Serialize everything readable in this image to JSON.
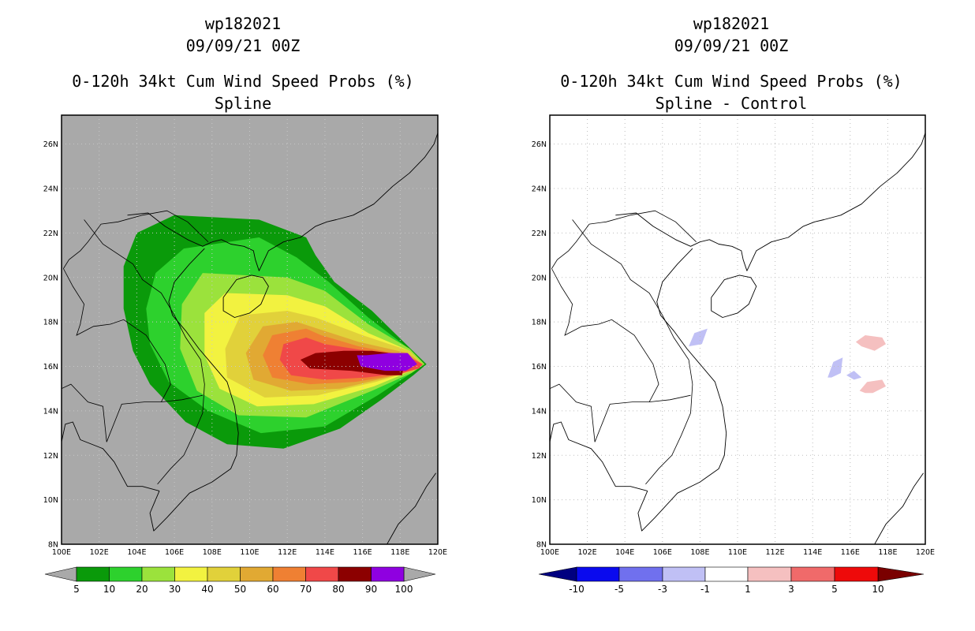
{
  "panels": [
    {
      "id": "left",
      "title_lines": [
        "wp182021",
        "09/09/21 00Z",
        "0-120h 34kt Cum Wind Speed Probs (%)",
        "Spline"
      ],
      "background_color": "#a9a9a9",
      "colorbar": {
        "colors": [
          "#0a9a0a",
          "#2dd12d",
          "#9be23c",
          "#f2f240",
          "#e1d13a",
          "#e1a933",
          "#ef8033",
          "#f04848",
          "#8c0000",
          "#8f00e0"
        ],
        "labels": [
          "5",
          "10",
          "20",
          "30",
          "40",
          "50",
          "60",
          "70",
          "80",
          "90",
          "100"
        ],
        "end_arrow_color": "#a9a9a9"
      }
    },
    {
      "id": "right",
      "title_lines": [
        "wp182021",
        "09/09/21 00Z",
        "0-120h 34kt Cum Wind Speed Probs (%)",
        "Spline - Control"
      ],
      "background_color": "#ffffff",
      "colorbar": {
        "colors": [
          "#0000a0",
          "#0a0aee",
          "#7070ee",
          "#c0c0f5",
          "#ffffff",
          "#f5c0c0",
          "#f06a6a",
          "#ee0a0a",
          "#8c0000"
        ],
        "labels": [
          "-10",
          "-5",
          "-3",
          "-1",
          "1",
          "3",
          "5",
          "10"
        ],
        "left_arrow_color": "#000080",
        "right_arrow_color": "#7a0000"
      }
    }
  ],
  "chart_data": {
    "type": "heatmap",
    "units": "%",
    "map": {
      "lon_range": [
        100,
        120
      ],
      "lat_range": [
        8,
        27.3
      ],
      "x_tick_labels": [
        "100E",
        "102E",
        "104E",
        "106E",
        "108E",
        "110E",
        "112E",
        "114E",
        "116E",
        "118E",
        "120E"
      ],
      "y_tick_labels": [
        "8N",
        "10N",
        "12N",
        "14N",
        "16N",
        "18N",
        "20N",
        "22N",
        "24N",
        "26N"
      ]
    },
    "left_probability_contours": [
      {
        "level": 5,
        "lons": [
          113.5,
          113,
          110.5,
          106,
          104,
          103.3,
          103.3,
          103.8,
          104.7,
          106.6,
          108.8,
          111.8,
          114.8,
          117,
          118.7,
          119.4,
          118.3,
          116.5,
          114.5
        ],
        "lats": [
          21.0,
          21.8,
          22.6,
          22.8,
          22.0,
          20.5,
          18.6,
          16.7,
          15.2,
          13.5,
          12.5,
          12.3,
          13.2,
          14.5,
          15.6,
          16.1,
          17.0,
          18.5,
          19.8
        ]
      },
      {
        "level": 10,
        "lons": [
          112.5,
          110.5,
          106.5,
          105,
          104.5,
          104.7,
          105.7,
          107.8,
          110.6,
          114,
          116.8,
          118.6,
          119.3,
          118.3,
          116.3,
          114.2
        ],
        "lats": [
          20.9,
          21.8,
          21.3,
          20.2,
          18.6,
          17.0,
          15.3,
          14.0,
          13.0,
          13.3,
          14.7,
          15.7,
          16.1,
          16.9,
          18.2,
          19.8
        ]
      },
      {
        "level": 20,
        "lons": [
          112,
          107.5,
          106.4,
          106.3,
          107.2,
          109.4,
          113,
          116.5,
          118.6,
          119.3,
          118.5,
          116.3,
          114
        ],
        "lats": [
          20.0,
          20.2,
          18.8,
          16.8,
          14.9,
          13.8,
          13.7,
          14.9,
          15.7,
          16.1,
          16.8,
          17.9,
          19.4
        ]
      },
      {
        "level": 30,
        "lons": [
          112,
          108.7,
          107.6,
          107.6,
          108.4,
          110.4,
          113.4,
          116.6,
          118.6,
          119.2,
          118.5,
          116.3,
          114
        ],
        "lats": [
          19.2,
          19.3,
          18.4,
          16.5,
          15.0,
          14.2,
          14.3,
          15.1,
          15.8,
          16.1,
          16.7,
          17.5,
          18.7
        ]
      },
      {
        "level": 40,
        "lons": [
          112,
          109.5,
          108.7,
          108.8,
          110.8,
          113.6,
          116.7,
          118.7,
          119.2,
          118.5,
          116,
          113.5
        ],
        "lats": [
          18.5,
          18.3,
          16.8,
          15.5,
          14.6,
          14.7,
          15.3,
          15.8,
          16.1,
          16.7,
          17.4,
          18.2
        ]
      },
      {
        "level": 50,
        "lons": [
          112.5,
          110.7,
          109.8,
          110.2,
          112.2,
          114.8,
          117.3,
          118.8,
          119.2,
          118.4,
          115.8,
          113.6
        ],
        "lats": [
          18.0,
          17.8,
          16.6,
          15.4,
          14.9,
          15.0,
          15.5,
          15.9,
          16.1,
          16.6,
          17.1,
          17.7
        ]
      },
      {
        "level": 60,
        "lons": [
          113,
          111.2,
          110.7,
          111.2,
          113.2,
          115.6,
          117.8,
          118.9,
          119.2,
          118.3,
          115.8,
          113.8
        ],
        "lats": [
          17.7,
          17.4,
          16.5,
          15.5,
          15.2,
          15.3,
          15.6,
          15.9,
          16.1,
          16.5,
          16.9,
          17.4
        ]
      },
      {
        "level": 70,
        "lons": [
          113,
          111.8,
          111.6,
          112.2,
          114,
          116.2,
          118.1,
          119.0,
          119.2,
          118.3,
          116.2,
          114
        ],
        "lats": [
          17.3,
          17.0,
          16.3,
          15.6,
          15.4,
          15.5,
          15.7,
          15.9,
          16.1,
          16.5,
          16.7,
          17.0
        ]
      },
      {
        "level": 80,
        "lons": [
          113.5,
          112.7,
          113.2,
          115.4,
          117.3,
          118.1,
          118.3,
          116.5,
          115
        ],
        "lats": [
          16.6,
          16.3,
          15.9,
          15.8,
          15.6,
          15.6,
          16.5,
          16.7,
          16.7
        ]
      },
      {
        "level": 90,
        "lons": [
          115.7,
          115.9,
          117.2,
          118.3,
          118.9,
          118.4,
          117.4,
          116.2
        ],
        "lats": [
          16.5,
          16.0,
          15.8,
          15.8,
          16.1,
          16.6,
          16.6,
          16.5
        ]
      }
    ],
    "right_difference_patches": [
      {
        "level": "-3..-1",
        "lons": [
          107.4,
          107.7,
          108.4,
          108.1
        ],
        "lats": [
          16.9,
          17.5,
          17.7,
          17.0
        ]
      },
      {
        "level": "-3..-1",
        "lons": [
          114.8,
          115.1,
          115.6,
          115.5,
          115.0
        ],
        "lats": [
          15.5,
          16.2,
          16.4,
          15.7,
          15.5
        ]
      },
      {
        "level": "-3..-1",
        "lons": [
          115.8,
          116.2,
          116.6,
          116.2
        ],
        "lats": [
          15.6,
          15.8,
          15.5,
          15.4
        ]
      },
      {
        "level": "1..3",
        "lons": [
          116.3,
          116.8,
          117.7,
          117.9,
          117.3,
          116.6
        ],
        "lats": [
          17.1,
          17.4,
          17.3,
          17.0,
          16.7,
          16.9
        ]
      },
      {
        "level": "1..3",
        "lons": [
          116.5,
          116.9,
          117.7,
          117.9,
          117.2,
          116.8
        ],
        "lats": [
          14.9,
          15.3,
          15.4,
          15.1,
          14.8,
          14.8
        ]
      }
    ],
    "coastlines": [
      {
        "name": "china-coast",
        "lons": [
          103.5,
          104.6,
          105.5,
          106.7,
          107.5,
          108.0,
          108.5,
          109.0,
          109.7,
          110.2,
          110.3,
          110.5,
          111.0,
          111.8,
          112.7,
          113.5,
          114.1,
          114.6,
          115.5,
          116.6,
          117.6,
          118.5,
          119.3,
          119.8,
          120.0
        ],
        "lats": [
          22.8,
          22.9,
          22.3,
          21.7,
          21.4,
          21.6,
          21.7,
          21.5,
          21.4,
          21.2,
          20.8,
          20.3,
          21.2,
          21.6,
          21.8,
          22.3,
          22.5,
          22.6,
          22.8,
          23.3,
          24.1,
          24.7,
          25.4,
          26.0,
          26.5
        ]
      },
      {
        "name": "hainan",
        "lons": [
          108.6,
          109.3,
          110.1,
          110.7,
          111.0,
          110.6,
          110.0,
          109.2,
          108.6,
          108.6
        ],
        "lats": [
          19.1,
          19.9,
          20.1,
          20.0,
          19.6,
          18.8,
          18.4,
          18.2,
          18.5,
          19.1
        ]
      },
      {
        "name": "vietnam-coast",
        "lons": [
          107.6,
          106.8,
          106.0,
          105.7,
          105.9,
          106.6,
          107.3,
          108.0,
          108.8,
          109.2,
          109.4,
          109.3,
          109.0,
          108.0,
          106.8,
          105.6,
          104.9,
          104.7,
          105.2
        ],
        "lats": [
          21.3,
          20.6,
          19.8,
          18.9,
          18.3,
          17.6,
          16.8,
          16.1,
          15.3,
          14.2,
          13.0,
          12.0,
          11.4,
          10.8,
          10.3,
          9.2,
          8.6,
          9.4,
          10.4
        ]
      },
      {
        "name": "gulf-of-thailand",
        "lons": [
          105.2,
          104.3,
          103.5,
          102.8,
          102.2,
          101.0,
          100.6,
          100.2,
          100.0,
          99.8
        ],
        "lats": [
          10.4,
          10.6,
          10.6,
          11.7,
          12.3,
          12.7,
          13.5,
          13.4,
          12.6,
          11.0
        ]
      },
      {
        "name": "borneo-palawan",
        "lons": [
          117.3,
          117.9,
          118.8,
          119.4,
          119.9
        ],
        "lats": [
          8.0,
          8.9,
          9.7,
          10.6,
          11.2
        ]
      }
    ],
    "borders": [
      {
        "lons": [
          102.1,
          103.0,
          104.3,
          105.6,
          106.7,
          107.8
        ],
        "lats": [
          22.4,
          22.5,
          22.8,
          23.0,
          22.5,
          21.6
        ]
      },
      {
        "lons": [
          102.1,
          101.4,
          101.0,
          100.4,
          100.1
        ],
        "lats": [
          22.4,
          21.6,
          21.2,
          20.8,
          20.4
        ]
      },
      {
        "lons": [
          101.2,
          102.2,
          103.8,
          104.3,
          105.3,
          106.0,
          106.6,
          107.4,
          107.6,
          107.5,
          107.0,
          106.5,
          105.8,
          105.1
        ],
        "lats": [
          22.6,
          21.5,
          20.6,
          19.9,
          19.3,
          18.3,
          17.3,
          16.3,
          15.2,
          13.9,
          12.9,
          12.0,
          11.4,
          10.7
        ]
      },
      {
        "lons": [
          100.1,
          100.6,
          101.2,
          101.0,
          100.8,
          101.7,
          102.6,
          103.3,
          104.5,
          105.5,
          105.8,
          105.3
        ],
        "lats": [
          20.4,
          19.6,
          18.8,
          17.9,
          17.4,
          17.8,
          17.9,
          18.1,
          17.4,
          16.1,
          15.2,
          14.4
        ]
      },
      {
        "lons": [
          102.4,
          103.2,
          104.4,
          105.3,
          106.4,
          107.5
        ],
        "lats": [
          12.6,
          14.3,
          14.4,
          14.4,
          14.5,
          14.7
        ]
      },
      {
        "lons": [
          100.0,
          100.5,
          101.4,
          102.2,
          102.4
        ],
        "lats": [
          15.0,
          15.2,
          14.4,
          14.2,
          12.6
        ]
      }
    ]
  }
}
